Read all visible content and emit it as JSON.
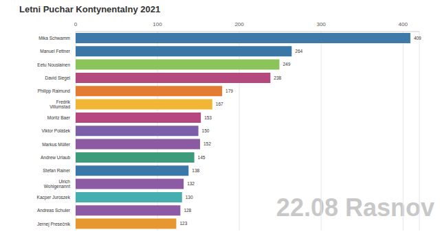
{
  "chart_data": {
    "type": "bar",
    "title": "Letni Puchar Kontynentalny 2021",
    "orientation": "horizontal",
    "annotations": [
      "22.08 Rasnov"
    ],
    "categories": [
      "Mika Schwamm",
      "Manuel Fettner",
      "Eetu Nousiainen",
      "David Siegel",
      "Philipp Raimund",
      "Fredrik Villumstad",
      "Moritz Baer",
      "Viktor Polášek",
      "Markus Müller",
      "Andrew Urlaub",
      "Stefan Rainer",
      "Ulrich Wohlgenannt",
      "Kacper Juroszek",
      "Andreas Schuler",
      "Jernej Presečnik"
    ],
    "values": [
      409,
      264,
      249,
      238,
      179,
      167,
      153,
      150,
      152,
      145,
      138,
      132,
      130,
      128,
      123
    ],
    "colors": [
      "#3d79a9",
      "#3a77a6",
      "#8cc45c",
      "#b3497d",
      "#e37c32",
      "#f1b634",
      "#b5497f",
      "#7b5fa8",
      "#8a5ba1",
      "#3c9b7a",
      "#3b78a8",
      "#8d5ba3",
      "#45afaf",
      "#8d5ba3",
      "#e8962f"
    ],
    "xlim": [
      0,
      420
    ],
    "xticks": [
      0,
      100,
      200,
      300,
      400
    ],
    "grid": true,
    "data_labels": true
  }
}
